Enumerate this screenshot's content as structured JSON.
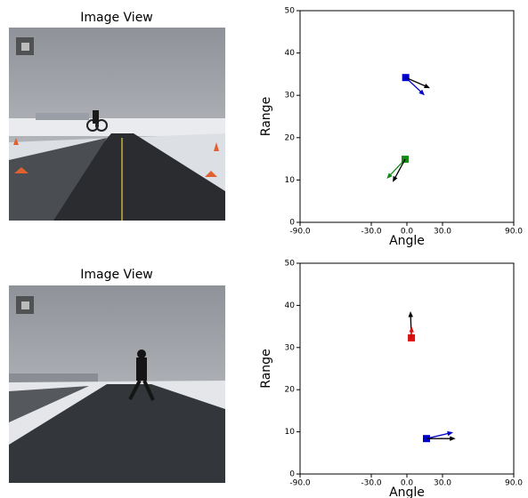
{
  "image_views": [
    {
      "title": "Image View"
    },
    {
      "title": "Image View"
    }
  ],
  "chart_data": [
    {
      "type": "scatter",
      "xlabel": "Angle",
      "ylabel": "Range",
      "xlim": [
        -90,
        90
      ],
      "ylim": [
        0,
        50
      ],
      "xticks": [
        {
          "value": -90,
          "label": "-90.0"
        },
        {
          "value": -30,
          "label": "-30.0"
        },
        {
          "value": 0,
          "label": "0.0"
        },
        {
          "value": 30,
          "label": "30.0"
        },
        {
          "value": 90,
          "label": "90.0"
        }
      ],
      "yticks": [
        0,
        10,
        20,
        30,
        40,
        50
      ],
      "series": [
        {
          "color": "#0000cc",
          "x": [
            -1
          ],
          "values": [
            34.2
          ]
        },
        {
          "color": "#138a13",
          "x": [
            -1.5
          ],
          "values": [
            14.9
          ]
        }
      ],
      "arrows": [
        {
          "color": "#000000",
          "x": -1,
          "y": 34.2,
          "x_end": 19.5,
          "y_end": 31.7
        },
        {
          "color": "#0000cc",
          "x": -1,
          "y": 34.2,
          "x_end": 15,
          "y_end": 30
        },
        {
          "color": "#138a13",
          "x": -1.5,
          "y": 14.9,
          "x_end": -17,
          "y_end": 10.3
        },
        {
          "color": "#000000",
          "x": -1.5,
          "y": 14.9,
          "x_end": -12,
          "y_end": 9.5
        }
      ]
    },
    {
      "type": "scatter",
      "xlabel": "Angle",
      "ylabel": "Range",
      "xlim": [
        -90,
        90
      ],
      "ylim": [
        0,
        50
      ],
      "xticks": [
        {
          "value": -90,
          "label": "-90.0"
        },
        {
          "value": -30,
          "label": "-30.0"
        },
        {
          "value": 0,
          "label": "0.0"
        },
        {
          "value": 30,
          "label": "30.0"
        },
        {
          "value": 90,
          "label": "90.0"
        }
      ],
      "yticks": [
        0,
        10,
        20,
        30,
        40,
        50
      ],
      "series": [
        {
          "color": "#dd1111",
          "x": [
            3.8
          ],
          "values": [
            32.3
          ]
        },
        {
          "color": "#0000cc",
          "x": [
            16.5
          ],
          "values": [
            8.4
          ]
        }
      ],
      "arrows": [
        {
          "color": "#000000",
          "x": 3.8,
          "y": 32.3,
          "x_end": 3,
          "y_end": 38.6
        },
        {
          "color": "#dd1111",
          "x": 3.8,
          "y": 32.3,
          "x_end": 4,
          "y_end": 35
        },
        {
          "color": "#0000cc",
          "x": 16.5,
          "y": 8.4,
          "x_end": 39,
          "y_end": 9.9
        },
        {
          "color": "#000000",
          "x": 16.5,
          "y": 8.4,
          "x_end": 41,
          "y_end": 8.4
        }
      ]
    }
  ]
}
